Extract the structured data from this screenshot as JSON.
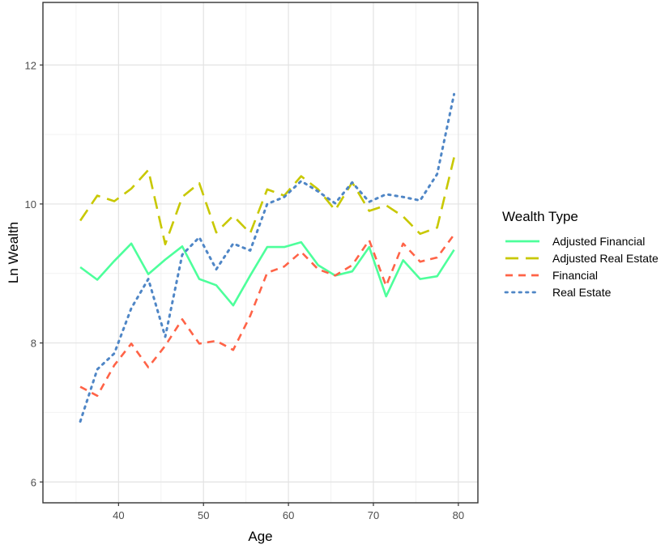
{
  "chart_data": {
    "type": "line",
    "title": "",
    "xlabel": "Age",
    "ylabel": "Ln Wealth",
    "xlim": [
      31.1,
      82.3
    ],
    "ylim": [
      5.7,
      12.9
    ],
    "x_ticks": [
      40,
      50,
      60,
      70,
      80
    ],
    "y_ticks": [
      6,
      8,
      10,
      12
    ],
    "grid": true,
    "legend": {
      "title": "Wealth Type",
      "position": "right"
    },
    "x": [
      35.5,
      37.5,
      39.5,
      41.5,
      43.5,
      45.5,
      47.5,
      49.5,
      51.5,
      53.5,
      55.5,
      57.5,
      59.5,
      61.5,
      63.5,
      65.5,
      67.5,
      69.5,
      71.5,
      73.5,
      75.5,
      77.5,
      79.5
    ],
    "series": [
      {
        "name": "Adjusted Financial",
        "color": "#4dff9b",
        "dash": "solid",
        "values": [
          9.09,
          8.91,
          9.18,
          9.43,
          8.99,
          9.2,
          9.39,
          8.92,
          8.83,
          8.54,
          8.97,
          9.38,
          9.38,
          9.45,
          9.12,
          8.97,
          9.03,
          9.38,
          8.67,
          9.19,
          8.92,
          8.96,
          9.34
        ]
      },
      {
        "name": "Adjusted Real Estate",
        "color": "#c8c800",
        "dash": "longdash",
        "values": [
          9.76,
          10.12,
          10.04,
          10.22,
          10.49,
          9.42,
          10.1,
          10.3,
          9.59,
          9.83,
          9.58,
          10.21,
          10.12,
          10.4,
          10.21,
          9.91,
          10.31,
          9.9,
          9.98,
          9.82,
          9.57,
          9.66,
          10.67
        ]
      },
      {
        "name": "Financial",
        "color": "#ff6347",
        "dash": "dashed",
        "values": [
          7.37,
          7.24,
          7.68,
          7.99,
          7.65,
          7.96,
          8.34,
          7.99,
          8.03,
          7.9,
          8.39,
          9.01,
          9.1,
          9.31,
          9.06,
          8.97,
          9.12,
          9.48,
          8.82,
          9.43,
          9.17,
          9.23,
          9.56
        ]
      },
      {
        "name": "Real Estate",
        "color": "#4f86c6",
        "dash": "dotted",
        "values": [
          6.87,
          7.62,
          7.85,
          8.5,
          8.92,
          8.09,
          9.27,
          9.52,
          9.06,
          9.43,
          9.33,
          10.0,
          10.1,
          10.33,
          10.18,
          10.01,
          10.31,
          10.03,
          10.14,
          10.1,
          10.05,
          10.43,
          11.58
        ]
      }
    ]
  }
}
